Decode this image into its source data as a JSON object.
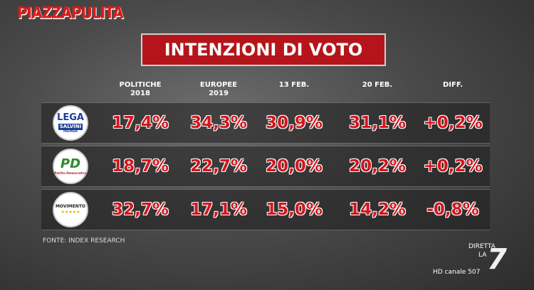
{
  "brand": "PIAZZAPULITA",
  "title": "INTENZIONI DI VOTO",
  "table": {
    "headers": [
      [
        "POLITICHE",
        "2018"
      ],
      [
        "EUROPEE",
        "2019"
      ],
      [
        "13 FEB."
      ],
      [
        "20 FEB."
      ],
      [
        "DIFF."
      ]
    ],
    "rows": [
      {
        "logo": [
          "LEGA",
          "SALVINI",
          "PREMIER"
        ],
        "cells": [
          "17,4%",
          "34,3%",
          "30,9%",
          "31,1%",
          "+0,2%"
        ]
      },
      {
        "logo": [
          "PD",
          "Partito Democratico"
        ],
        "cells": [
          "18,7%",
          "22,7%",
          "20,0%",
          "20,2%",
          "+0,2%"
        ]
      },
      {
        "logo": [
          "MOVIMENTO",
          "★★★★★"
        ],
        "cells": [
          "32,7%",
          "17,1%",
          "15,0%",
          "14,2%",
          "-0,8%"
        ]
      }
    ]
  },
  "source": "FONTE: INDEX RESEARCH",
  "watermark": {
    "line1": "DIRETTA",
    "line2": "LA",
    "logo": "7",
    "channel": "HD canale 507"
  }
}
